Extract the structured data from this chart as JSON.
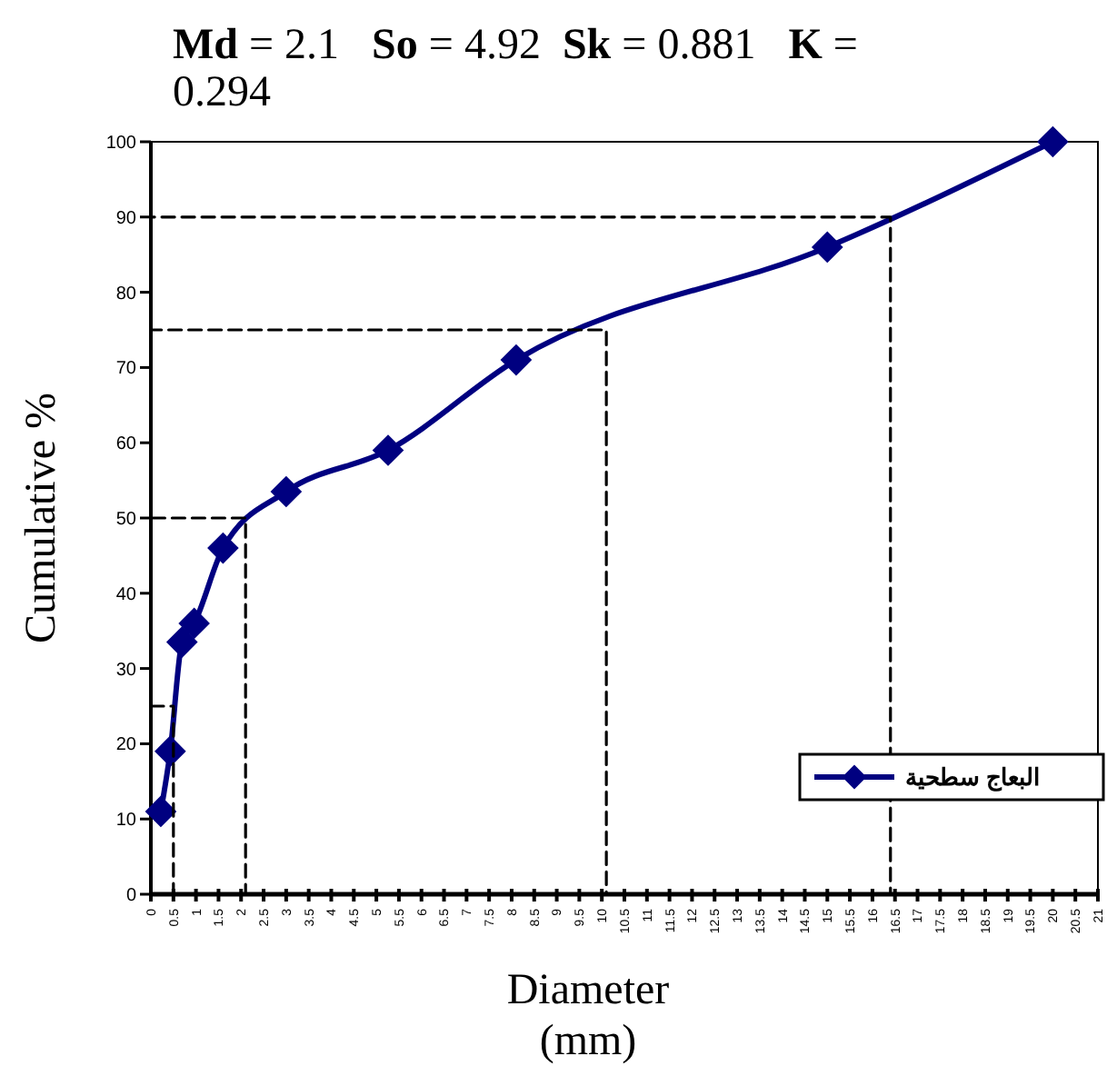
{
  "chart_data": {
    "type": "line",
    "title": "Md = 2.1   So = 4.92  Sk = 0.881   K = 0.294",
    "xlabel": "Diameter (mm)",
    "ylabel": "Cumulative %",
    "xlim": [
      0,
      21
    ],
    "xticks": [
      0,
      0.5,
      1,
      1.5,
      2,
      2.5,
      3,
      3.5,
      4,
      4.5,
      5,
      5.5,
      6,
      6.5,
      7,
      7.5,
      8,
      8.5,
      9,
      9.5,
      10,
      10.5,
      11,
      11.5,
      12,
      12.5,
      13,
      13.5,
      14,
      14.5,
      15,
      15.5,
      16,
      16.5,
      17,
      17.5,
      18,
      18.5,
      19,
      19.5,
      20,
      20.5,
      21
    ],
    "ylim": [
      0,
      100
    ],
    "yticks": [
      0,
      10,
      20,
      30,
      40,
      50,
      60,
      70,
      80,
      90,
      100
    ],
    "grid": false,
    "legend": "right",
    "series": [
      {
        "name": "البعاج سطحية",
        "color": "#000080",
        "marker": "diamond",
        "line_style": "solid",
        "x": [
          0.22,
          0.43,
          0.69,
          0.96,
          1.6,
          3.0,
          5.26,
          8.1,
          15,
          20
        ],
        "values": [
          11,
          19,
          33.5,
          36,
          46,
          53.5,
          59,
          71,
          86,
          100
        ]
      },
      {
        "color": "#000000",
        "marker": "none",
        "line_style": "dashed",
        "x": [
          0,
          0.5,
          0.5,
          2.1,
          2.1,
          0,
          0,
          10.1,
          10.1,
          16.4,
          16.4,
          0
        ],
        "values": [
          25,
          25,
          0,
          0,
          50,
          50,
          75,
          75,
          0,
          0,
          90,
          90
        ]
      }
    ]
  }
}
